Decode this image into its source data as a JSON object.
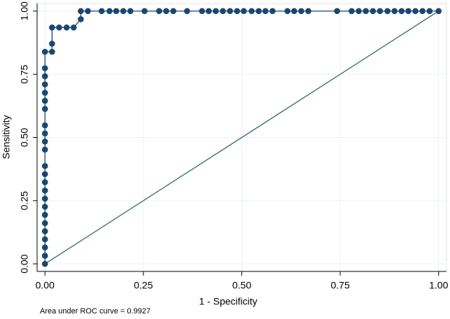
{
  "chart_data": {
    "type": "line",
    "note": "Area under ROC curve = 0.9927",
    "x_label": "1 - Specificity",
    "y_label": "Sensitivity",
    "xlim": [
      -0.02,
      1.02
    ],
    "ylim": [
      -0.03,
      1.03
    ],
    "xticks": [
      {
        "value": 0,
        "label": "0.00"
      },
      {
        "value": 0.25,
        "label": "0.25"
      },
      {
        "value": 0.5,
        "label": "0.50"
      },
      {
        "value": 0.75,
        "label": "0.75"
      },
      {
        "value": 1,
        "label": "1.00"
      }
    ],
    "yticks": [
      {
        "value": 0,
        "label": "0.00"
      },
      {
        "value": 0.25,
        "label": "0.25"
      },
      {
        "value": 0.5,
        "label": "0.50"
      },
      {
        "value": 0.75,
        "label": "0.75"
      },
      {
        "value": 1,
        "label": "1.00"
      }
    ],
    "grid": true,
    "series": [
      {
        "color": "#1a476f",
        "markers": true,
        "x": [
          0,
          0,
          0,
          0,
          0,
          0,
          0,
          0,
          0,
          0,
          0,
          0,
          0,
          0,
          0,
          0,
          0,
          0,
          0,
          0,
          0,
          0,
          0,
          0,
          0.018,
          0.018,
          0.018,
          0.036,
          0.055,
          0.073,
          0.091,
          0.091,
          0.109,
          0.144,
          0.164,
          0.181,
          0.199,
          0.217,
          0.253,
          0.29,
          0.308,
          0.326,
          0.361,
          0.399,
          0.416,
          0.434,
          0.452,
          0.47,
          0.488,
          0.505,
          0.525,
          0.543,
          0.56,
          0.578,
          0.616,
          0.633,
          0.651,
          0.669,
          0.742,
          0.779,
          0.797,
          0.815,
          0.833,
          0.851,
          0.87,
          0.888,
          0.906,
          0.923,
          0.941,
          0.959,
          0.977,
          1
        ],
        "values": [
          0,
          0.032,
          0.065,
          0.097,
          0.129,
          0.161,
          0.194,
          0.226,
          0.258,
          0.29,
          0.323,
          0.355,
          0.387,
          0.452,
          0.484,
          0.516,
          0.548,
          0.613,
          0.645,
          0.677,
          0.71,
          0.742,
          0.774,
          0.839,
          0.839,
          0.871,
          0.935,
          0.935,
          0.935,
          0.935,
          0.968,
          1,
          1,
          1,
          1,
          1,
          1,
          1,
          1,
          1,
          1,
          1,
          1,
          1,
          1,
          1,
          1,
          1,
          1,
          1,
          1,
          1,
          1,
          1,
          1,
          1,
          1,
          1,
          1,
          1,
          1,
          1,
          1,
          1,
          1,
          1,
          1,
          1,
          1,
          1,
          1,
          1
        ]
      },
      {
        "color": "#2d6d66",
        "markers": false,
        "x": [
          0,
          1
        ],
        "values": [
          0,
          1
        ]
      }
    ]
  }
}
